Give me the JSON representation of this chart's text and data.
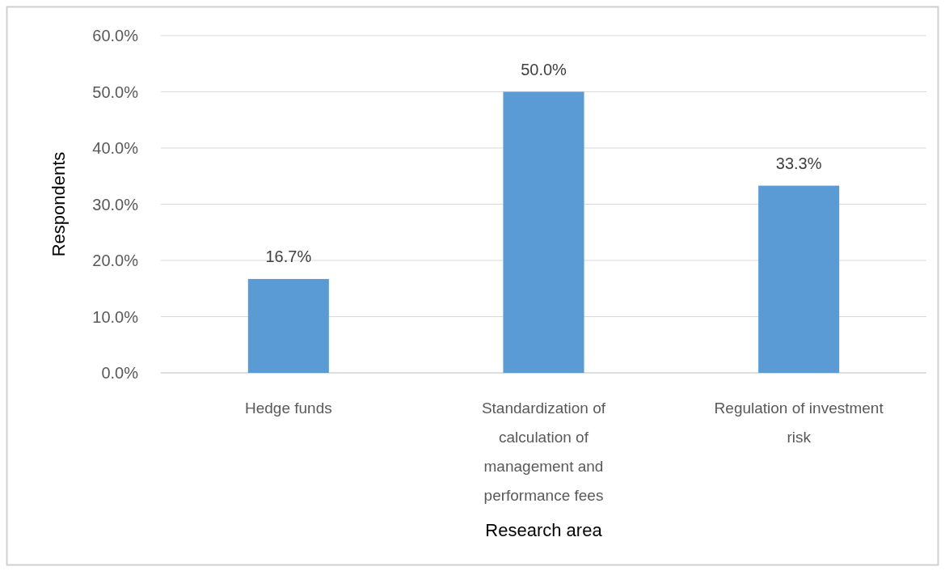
{
  "chart_data": {
    "type": "bar",
    "xlabel": "Research area",
    "ylabel": "Respondents",
    "categories": [
      "Hedge funds",
      "Standardization of calculation of management and performance fees",
      "Regulation of investment risk"
    ],
    "values": [
      16.7,
      50.0,
      33.3
    ],
    "color": "#5b9bd5",
    "value_labels": [
      "16.7%",
      "50.0%",
      "33.3%"
    ],
    "ylim": [
      0,
      60
    ],
    "yticks": [
      {
        "value": 0,
        "label": "0.0%"
      },
      {
        "value": 10,
        "label": "10.0%"
      },
      {
        "value": 20,
        "label": "20.0%"
      },
      {
        "value": 30,
        "label": "30.0%"
      },
      {
        "value": 40,
        "label": "40.0%"
      },
      {
        "value": 50,
        "label": "50.0%"
      },
      {
        "value": 60,
        "label": "60.0%"
      }
    ],
    "grid": "y"
  }
}
